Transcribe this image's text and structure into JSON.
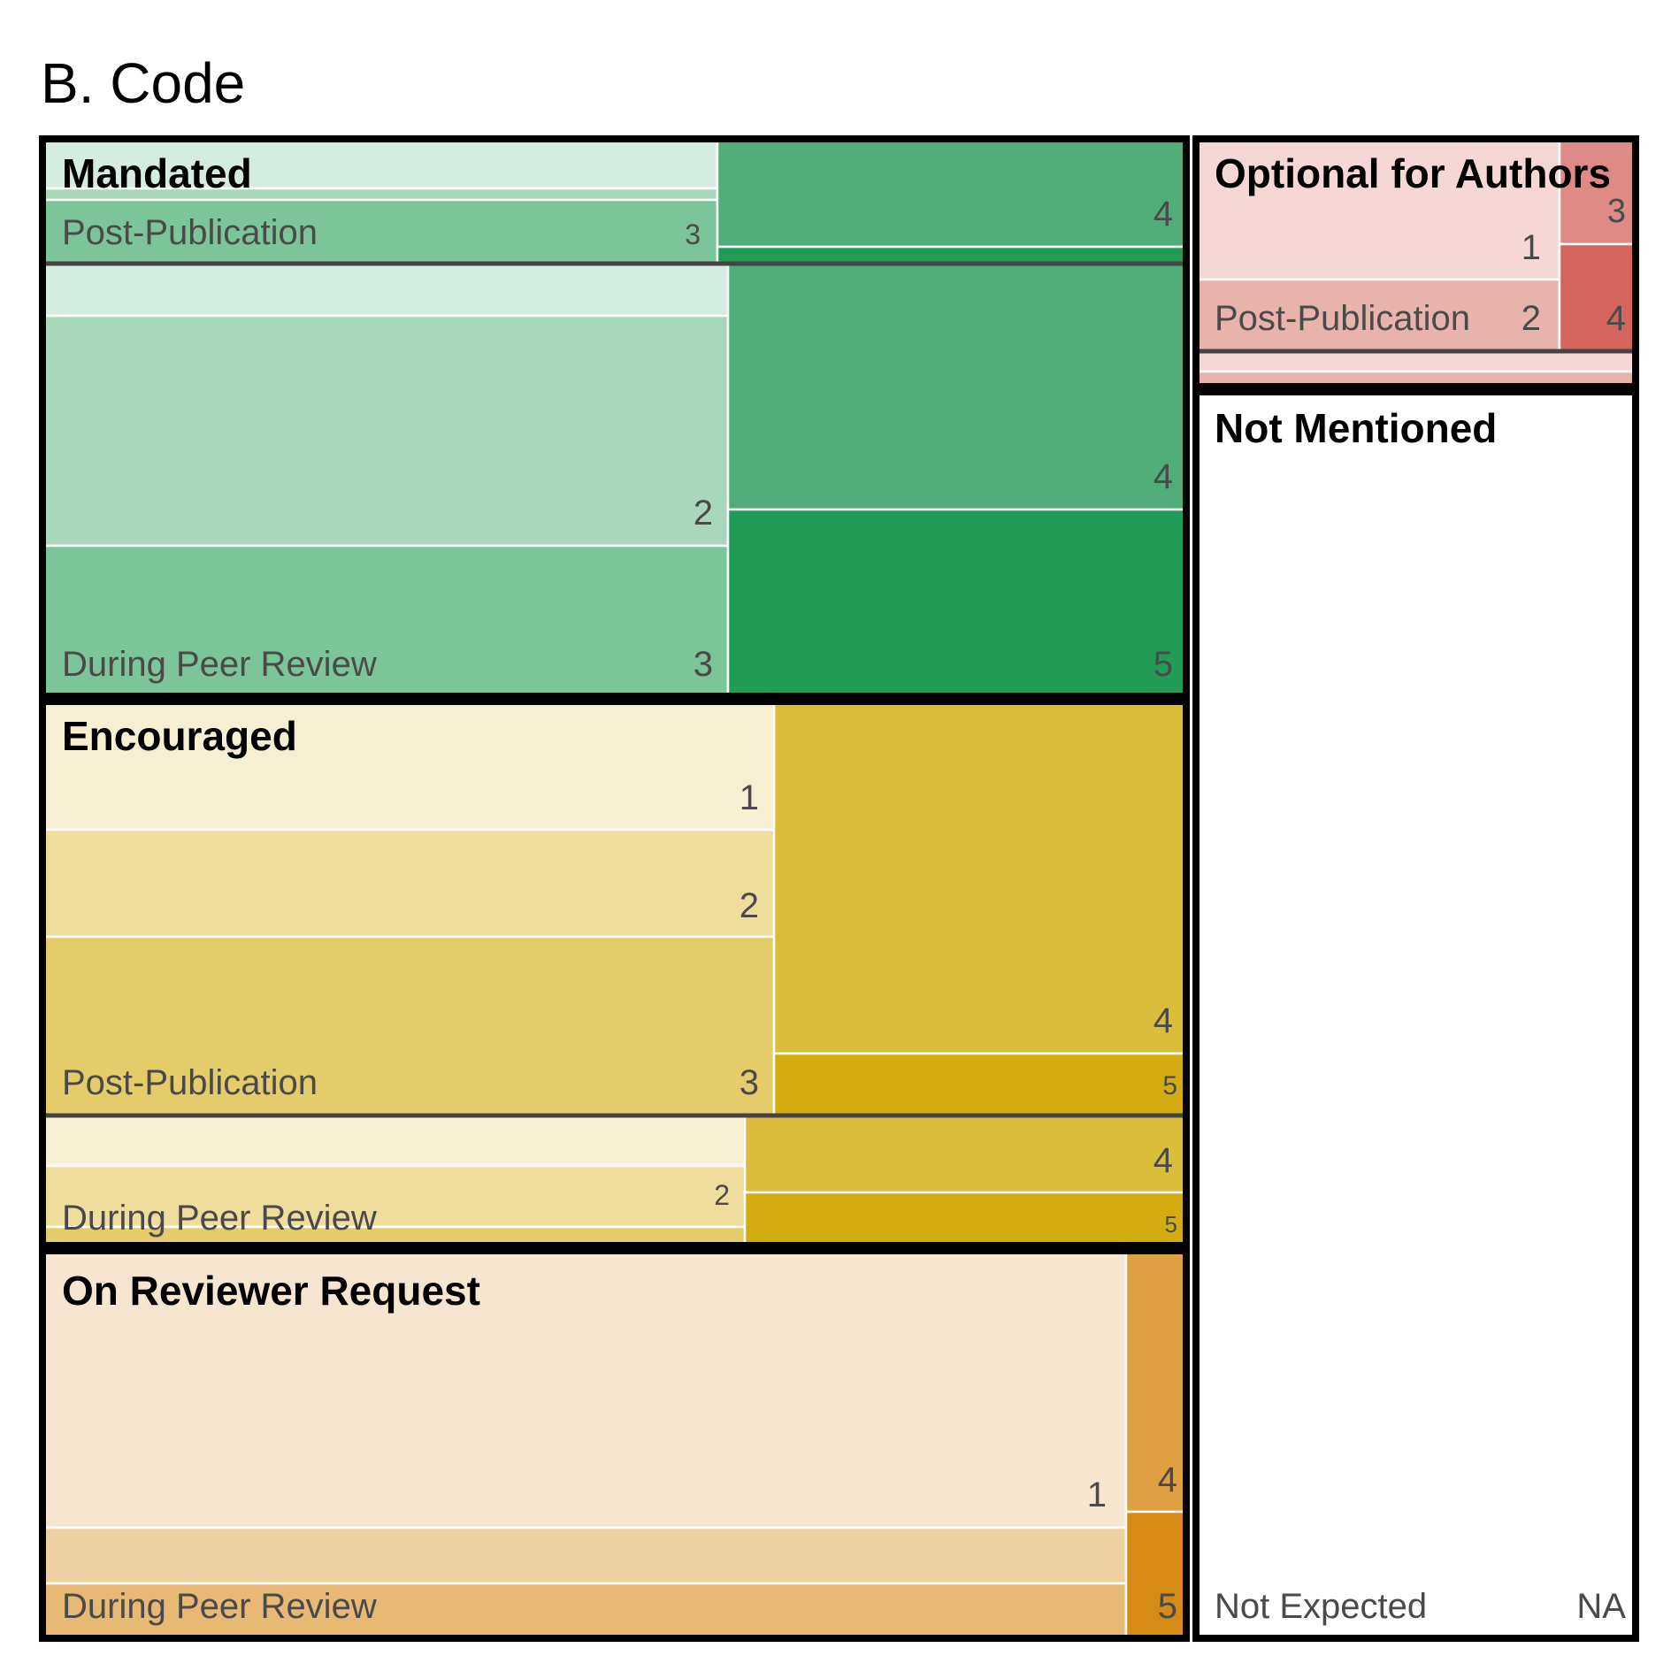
{
  "title": "B. Code",
  "chart_data": {
    "type": "treemap",
    "title": "B. Code",
    "groups": [
      {
        "label": "Mandated",
        "color": "#229b57",
        "subgroups": [
          {
            "label": "Post-Publication",
            "cells": [
              {
                "label": "",
                "level": 1,
                "color": "#d5ece0"
              },
              {
                "label": "",
                "level": 2,
                "color": "#a8d7bb"
              },
              {
                "label": "3",
                "level": 3,
                "color": "#7cc59a"
              },
              {
                "label": "4",
                "level": 4,
                "color": "#50ad79"
              },
              {
                "label": "",
                "level": 5,
                "color": "#229b57"
              }
            ]
          },
          {
            "label": "During Peer Review",
            "cells": [
              {
                "label": "",
                "level": 1,
                "color": "#d5ece0"
              },
              {
                "label": "2",
                "level": 2,
                "color": "#a8d7bb"
              },
              {
                "label": "3",
                "level": 3,
                "color": "#7cc59a"
              },
              {
                "label": "4",
                "level": 4,
                "color": "#50ad79"
              },
              {
                "label": "5",
                "level": 5,
                "color": "#229b57"
              }
            ]
          }
        ]
      },
      {
        "label": "Encouraged",
        "color": "#d4ab10",
        "subgroups": [
          {
            "label": "Post-Publication",
            "cells": [
              {
                "label": "1",
                "level": 1,
                "color": "#f7efd1"
              },
              {
                "label": "2",
                "level": 2,
                "color": "#eedd9c"
              },
              {
                "label": "3",
                "level": 3,
                "color": "#e4cc6b"
              },
              {
                "label": "4",
                "level": 4,
                "color": "#dbbd3c"
              },
              {
                "label": "5",
                "level": 5,
                "color": "#d4ab10"
              }
            ]
          },
          {
            "label": "During Peer Review",
            "cells": [
              {
                "label": "",
                "level": 1,
                "color": "#f7efd1"
              },
              {
                "label": "2",
                "level": 2,
                "color": "#eedd9c"
              },
              {
                "label": "",
                "level": 3,
                "color": "#e4cc6b"
              },
              {
                "label": "4",
                "level": 4,
                "color": "#dbbd3c"
              },
              {
                "label": "5",
                "level": 5,
                "color": "#d4ab10"
              }
            ]
          }
        ]
      },
      {
        "label": "On Reviewer Request",
        "color": "#d68b16",
        "subgroups": [
          {
            "label": "During Peer Review",
            "cells": [
              {
                "label": "1",
                "level": 1,
                "color": "#f6e6cf"
              },
              {
                "label": "",
                "level": 2,
                "color": "#efd2a4"
              },
              {
                "label": "",
                "level": 3,
                "color": "#e8b875"
              },
              {
                "label": "4",
                "level": 4,
                "color": "#dea042"
              },
              {
                "label": "5",
                "level": 5,
                "color": "#d68b16"
              }
            ]
          }
        ]
      },
      {
        "label": "Optional for Authors",
        "color": "#d4645c",
        "subgroups": [
          {
            "label": "Post-Publication",
            "cells": [
              {
                "label": "1",
                "level": 1,
                "color": "#f5d8d5"
              },
              {
                "label": "2",
                "level": 2,
                "color": "#e9b3ad"
              },
              {
                "label": "3",
                "level": 3,
                "color": "#df8b85"
              },
              {
                "label": "4",
                "level": 4,
                "color": "#d4645c"
              }
            ]
          },
          {
            "label": "",
            "cells": [
              {
                "label": "",
                "level": 1,
                "color": "#f5d8d5"
              },
              {
                "label": "",
                "level": 2,
                "color": "#e9b3ad"
              }
            ]
          }
        ]
      },
      {
        "label": "Not Mentioned",
        "color": "#ffffff",
        "subgroups": [
          {
            "label": "Not Expected",
            "cells": [
              {
                "label": "NA",
                "level": null,
                "color": "#ffffff"
              }
            ]
          }
        ]
      }
    ]
  }
}
